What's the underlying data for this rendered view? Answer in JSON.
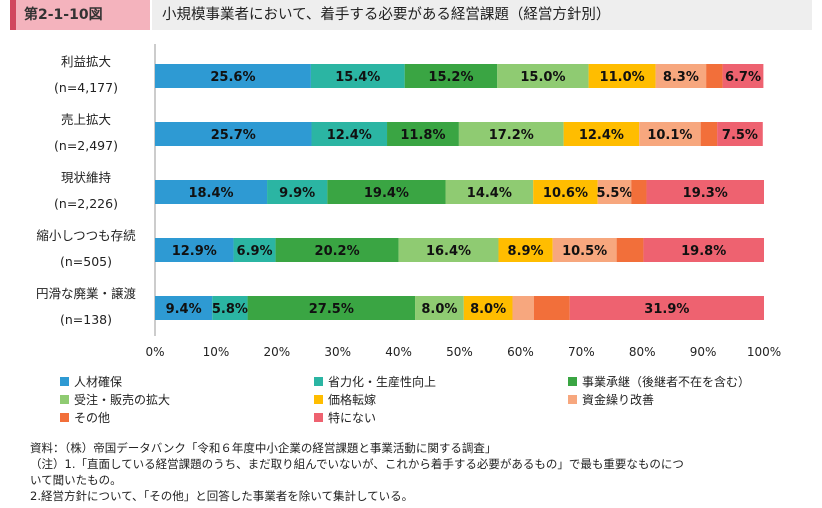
{
  "header": {
    "figure_label": "第2-1-10図",
    "title": "小規模事業者において、着手する必要がある経営課題（経営方針別）"
  },
  "chart_data": {
    "type": "bar",
    "orientation": "horizontal",
    "stacked": true,
    "xlim": [
      0,
      100
    ],
    "x_ticks": [
      "0%",
      "10%",
      "20%",
      "30%",
      "40%",
      "50%",
      "60%",
      "70%",
      "80%",
      "90%",
      "100%"
    ],
    "categories": [
      {
        "name": "利益拡大",
        "n": "(n=4,177)"
      },
      {
        "name": "売上拡大",
        "n": "(n=2,497)"
      },
      {
        "name": "現状維持",
        "n": "(n=2,226)"
      },
      {
        "name": "縮小しつつも存続",
        "n": "(n=505)"
      },
      {
        "name": "円滑な廃業・譲渡",
        "n": "(n=138)"
      }
    ],
    "series": [
      {
        "name": "人材確保",
        "color": "#2e9ad3",
        "values": [
          25.6,
          25.7,
          18.4,
          12.9,
          9.4
        ],
        "labels": [
          "25.6%",
          "25.7%",
          "18.4%",
          "12.9%",
          "9.4%"
        ]
      },
      {
        "name": "省力化・生産性向上",
        "color": "#2bb5a3",
        "values": [
          15.4,
          12.4,
          9.9,
          6.9,
          5.8
        ],
        "labels": [
          "15.4%",
          "12.4%",
          "9.9%",
          "6.9%",
          "5.8%"
        ]
      },
      {
        "name": "事業承継（後継者不在を含む）",
        "color": "#3aa543",
        "values": [
          15.2,
          11.8,
          19.4,
          20.2,
          27.5
        ],
        "labels": [
          "15.2%",
          "11.8%",
          "19.4%",
          "20.2%",
          "27.5%"
        ]
      },
      {
        "name": "受注・販売の拡大",
        "color": "#8fcb72",
        "values": [
          15.0,
          17.2,
          14.4,
          16.4,
          8.0
        ],
        "labels": [
          "15.0%",
          "17.2%",
          "14.4%",
          "16.4%",
          "8.0%"
        ]
      },
      {
        "name": "価格転嫁",
        "color": "#ffbd00",
        "values": [
          11.0,
          12.4,
          10.6,
          8.9,
          8.0
        ],
        "labels": [
          "11.0%",
          "12.4%",
          "10.6%",
          "8.9%",
          "8.0%"
        ]
      },
      {
        "name": "資金繰り改善",
        "color": "#f7a77e",
        "values": [
          8.3,
          10.1,
          5.5,
          10.5,
          3.5
        ],
        "labels": [
          "8.3%",
          "10.1%",
          "5.5%",
          "10.5%",
          ""
        ]
      },
      {
        "name": "その他",
        "color": "#f26f3a",
        "values": [
          2.7,
          2.7,
          2.5,
          4.4,
          5.9
        ],
        "labels": [
          "",
          "",
          "",
          "",
          ""
        ]
      },
      {
        "name": "特にない",
        "color": "#ee6270",
        "values": [
          6.7,
          7.5,
          19.3,
          19.8,
          31.9
        ],
        "labels": [
          "6.7%",
          "7.5%",
          "19.3%",
          "19.8%",
          "31.9%"
        ]
      }
    ]
  },
  "notes": {
    "source": "資料：（株）帝国データバンク「令和６年度中小企業の経営課題と事業活動に関する調査」",
    "note1": "（注）1.「直面している経営課題のうち、まだ取り組んでいないが、これから着手する必要があるもの」で最も重要なものにつ",
    "note1b": "いて聞いたもの。",
    "note2": "2.経営方針について、「その他」と回答した事業者を除いて集計している。"
  }
}
